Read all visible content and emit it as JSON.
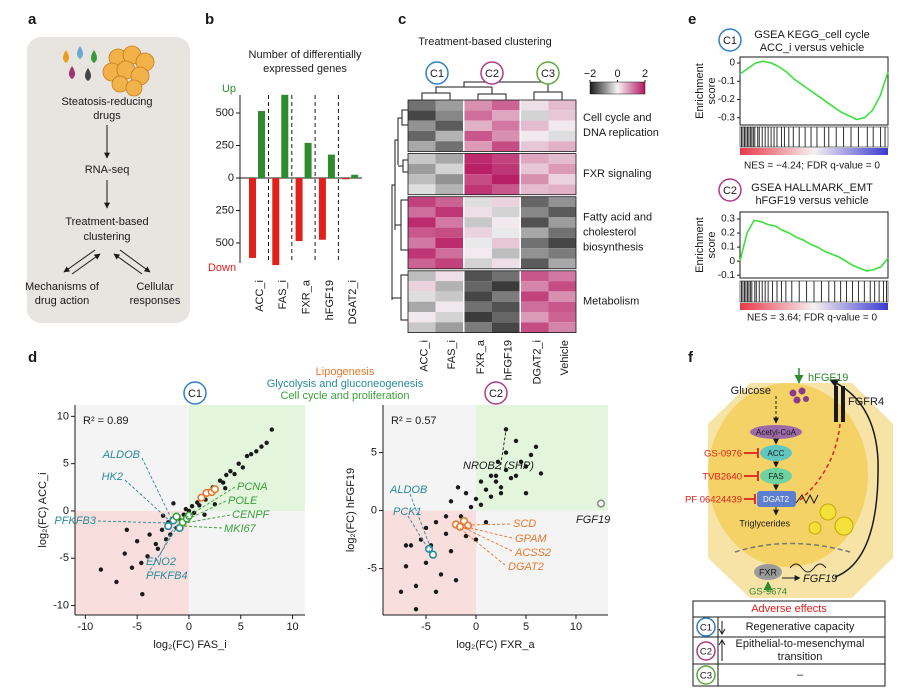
{
  "panel_labels": [
    "a",
    "b",
    "c",
    "d",
    "e",
    "f"
  ],
  "clusters": [
    {
      "label": "C1",
      "color": "#2f7fc1"
    },
    {
      "label": "C2",
      "color": "#b03a8a"
    },
    {
      "label": "C3",
      "color": "#5aaa3a"
    }
  ],
  "workflow": {
    "drugs": [
      "Steatosis-reducing",
      "drugs"
    ],
    "sequencing": "RNA-seq",
    "clustering": [
      "Treatment-based",
      "clustering"
    ],
    "mechanisms": [
      "Mechanisms of",
      "drug action"
    ],
    "responses": [
      "Cellular",
      "responses"
    ]
  },
  "pathway_legend": [
    {
      "name": "Lipogenesis",
      "color": "#e8772e"
    },
    {
      "name": "Glycolysis and gluconeogenesis",
      "color": "#2a8a9a"
    },
    {
      "name": "Cell cycle and proliferation",
      "color": "#3aa03a"
    }
  ],
  "chart_data": [
    {
      "type": "bar",
      "title": [
        "Number of differentially",
        "expressed genes"
      ],
      "categories": [
        "ACC_i",
        "FAS_i",
        "FXR_a",
        "hFGF19",
        "DGAT2_i"
      ],
      "series": [
        {
          "name": "Up",
          "color": "#2e8b2e",
          "values": [
            515,
            640,
            270,
            180,
            25
          ]
        },
        {
          "name": "Down",
          "color": "#e0201b",
          "values": [
            -615,
            -670,
            -485,
            -475,
            -10
          ]
        }
      ],
      "ylim": [
        -700,
        700
      ],
      "yticks": [
        500,
        250,
        0,
        {
          "value": -250,
          "label": "250"
        },
        {
          "value": -500,
          "label": "500"
        }
      ]
    },
    {
      "type": "heatmap",
      "title": "Treatment-based clustering",
      "categories": [
        "ACC_i",
        "FAS_i",
        "FXR_a",
        "hFGF19",
        "DGAT2_i",
        "Vehicle"
      ],
      "zlim": [
        -2,
        2
      ],
      "zticks": [
        {
          "value": -2,
          "label": "−2"
        },
        0,
        2
      ],
      "row_groups": [
        {
          "label": [
            "Cell cycle and",
            "DNA replication"
          ],
          "rows": [
            [
              -1.2,
              -0.8,
              0.9,
              1.3,
              0.2,
              0.5
            ],
            [
              -1.6,
              -1.0,
              1.2,
              0.7,
              -0.3,
              0.4
            ],
            [
              -0.9,
              -1.4,
              0.6,
              1.1,
              0.5,
              0.1
            ],
            [
              -1.3,
              -0.6,
              1.4,
              0.9,
              0.1,
              -0.2
            ],
            [
              -0.7,
              -1.2,
              0.8,
              1.5,
              0.4,
              0.6
            ]
          ]
        },
        {
          "label": [
            "FXR signaling"
          ],
          "rows": [
            [
              -0.4,
              -0.7,
              1.8,
              1.6,
              0.7,
              0.5
            ],
            [
              -0.8,
              -0.3,
              1.9,
              1.7,
              0.4,
              0.8
            ],
            [
              -0.5,
              -0.9,
              1.5,
              1.9,
              0.9,
              0.3
            ],
            [
              -0.2,
              -0.6,
              1.7,
              1.4,
              0.5,
              0.6
            ]
          ]
        },
        {
          "label": [
            "Fatty acid and",
            "cholesterol",
            "biosynthesis"
          ],
          "rows": [
            [
              1.6,
              1.3,
              -0.2,
              0.3,
              -1.3,
              -0.9
            ],
            [
              1.2,
              1.7,
              0.2,
              -0.3,
              -1.0,
              -1.4
            ],
            [
              1.8,
              1.1,
              -0.4,
              0.1,
              -1.5,
              -0.8
            ],
            [
              1.4,
              1.5,
              0.3,
              -0.1,
              -0.7,
              -1.2
            ],
            [
              1.1,
              1.8,
              -0.1,
              0.4,
              -1.2,
              -1.6
            ],
            [
              1.7,
              1.2,
              0.1,
              -0.5,
              -0.9,
              -1.1
            ],
            [
              1.3,
              1.6,
              -0.3,
              0.2,
              -1.4,
              -0.7
            ]
          ]
        },
        {
          "label": [
            "Metabolism"
          ],
          "rows": [
            [
              -0.5,
              0.2,
              -1.5,
              -1.2,
              1.4,
              1.1
            ],
            [
              0.3,
              -0.6,
              -1.3,
              -1.7,
              1.0,
              1.5
            ],
            [
              -0.2,
              -0.4,
              -1.6,
              -1.1,
              1.6,
              0.9
            ],
            [
              -0.7,
              0.1,
              -1.2,
              -1.5,
              1.2,
              1.4
            ],
            [
              0.1,
              -0.3,
              -1.7,
              -1.3,
              0.8,
              1.3
            ],
            [
              -0.4,
              -0.8,
              -1.1,
              -1.6,
              1.5,
              1.0
            ]
          ]
        }
      ]
    },
    {
      "type": "scatter",
      "annotation": "R² = 0.89",
      "xlabel": "log₂(FC) FAS_i",
      "ylabel": "log₂(FC) ACC_i",
      "xlim": [
        -11,
        11.2
      ],
      "ylim": [
        -11,
        11.2
      ],
      "xticks": [
        -10,
        -5,
        0,
        5,
        10
      ],
      "yticks": [
        10,
        5,
        0,
        -5,
        -10
      ],
      "series": [
        {
          "color": "#1a1a1a",
          "x": [
            -8.5,
            -7,
            -6.2,
            -5.5,
            -5,
            -4.6,
            -4,
            -3.8,
            -3.2,
            -3,
            -2.6,
            -2.2,
            -2,
            -1.8,
            -1.5,
            -1.2,
            -1,
            -0.8,
            -0.5,
            -0.3,
            0,
            0.3,
            0.5,
            0.8,
            1,
            1.3,
            1.6,
            2,
            2.3,
            2.6,
            3,
            3.3,
            3.6,
            4,
            4.4,
            4.8,
            5.2,
            5.6,
            6,
            6.5,
            7,
            7.5,
            8,
            -2.5,
            -1.5,
            1.5,
            2.5,
            -4.5,
            3.5,
            -6
          ],
          "values": [
            -6.2,
            -7.5,
            -4.5,
            -6,
            -3.2,
            -5.5,
            -4.8,
            -2.5,
            -3.5,
            -4,
            -2,
            -3,
            -1.2,
            -2.5,
            -1,
            -1.8,
            -0.6,
            -1,
            -0.4,
            0.2,
            0,
            0.5,
            -0.2,
            0.9,
            0.6,
            1.5,
            1.2,
            2.1,
            2.5,
            2.2,
            3.2,
            3,
            3.8,
            4.2,
            3.9,
            5,
            4.6,
            5.8,
            6,
            6.3,
            6.8,
            7.2,
            8.6,
            -0.5,
            0.8,
            -0.4,
            0.7,
            -8.8,
            2.4,
            -2
          ]
        },
        {
          "color": "#e8772e",
          "x": [
            1.2,
            1.7,
            2.2,
            2.5
          ],
          "values": [
            1.4,
            1.9,
            2.0,
            2.3
          ]
        },
        {
          "color": "#2a8a9a",
          "x": [
            -2.0,
            -1.5,
            -0.9
          ],
          "values": [
            -1.6,
            -1.0,
            -1.8
          ]
        },
        {
          "color": "#3aa03a",
          "x": [
            -1.2,
            -0.6,
            -0.2,
            0.0
          ],
          "values": [
            -0.6,
            -1.2,
            -0.8,
            -0.5
          ]
        }
      ],
      "gene_labels": [
        {
          "text": "ALDOB",
          "color": "#2a8a9a"
        },
        {
          "text": "HK2",
          "color": "#2a8a9a"
        },
        {
          "text": "PFKFB3",
          "color": "#2a8a9a"
        },
        {
          "text": "ENO2",
          "color": "#2a8a9a"
        },
        {
          "text": "PFKFB4",
          "color": "#2a8a9a"
        },
        {
          "text": "PCNA",
          "color": "#3aa03a"
        },
        {
          "text": "POLE",
          "color": "#3aa03a"
        },
        {
          "text": "CENPF",
          "color": "#3aa03a"
        },
        {
          "text": "MKI67",
          "color": "#3aa03a"
        }
      ]
    },
    {
      "type": "scatter",
      "annotation": "R² = 0.57",
      "xlabel": "log₂(FC) FXR_a",
      "ylabel": "log₂(FC) hFGF19",
      "xlim": [
        -9.3,
        13.2
      ],
      "ylim": [
        -9,
        9.1
      ],
      "xticks": [
        -5,
        0,
        5,
        10
      ],
      "yticks": [
        5,
        0,
        -5
      ],
      "series": [
        {
          "color": "#1a1a1a",
          "x": [
            -7.5,
            -7,
            -6.5,
            -6,
            -5.5,
            -5,
            -4.5,
            -4,
            -3.5,
            -3,
            -2.5,
            -2,
            -1.5,
            -1,
            -0.5,
            0,
            0.5,
            1,
            1.5,
            2,
            2.5,
            3,
            3.5,
            4,
            4.5,
            5,
            5.5,
            6,
            -6,
            -4,
            -2,
            -1,
            1,
            2,
            3,
            4,
            -3,
            0.5,
            1.5,
            2.5,
            3,
            2.2,
            -5,
            -2.5,
            -1.8,
            5,
            6.5,
            0,
            -7
          ],
          "values": [
            -7,
            -4.8,
            -3,
            -6.5,
            -2.5,
            -4.5,
            -3,
            -1,
            -5.5,
            -2,
            -3.5,
            -1.2,
            -0.5,
            -2.2,
            0.3,
            1,
            0.5,
            1.8,
            1.2,
            2.5,
            2,
            3.5,
            2.8,
            3,
            4.2,
            3.8,
            4.8,
            5.5,
            -8.5,
            -7,
            -6,
            1.5,
            -1,
            3,
            7,
            6,
            -0.5,
            2.5,
            3,
            1.5,
            5,
            4.2,
            -1.5,
            0.8,
            2,
            1.5,
            3.2,
            -2.5,
            -3
          ]
        },
        {
          "color": "#e8772e",
          "x": [
            -2.0,
            -1.6,
            -1.2,
            -0.8
          ],
          "values": [
            -1.2,
            -1.4,
            -0.9,
            -1.3
          ]
        },
        {
          "color": "#2a8a9a",
          "x": [
            -4.7,
            -4.3
          ],
          "values": [
            -3.3,
            -3.8
          ]
        },
        {
          "color": "#8a8a8a",
          "x": [
            12.5
          ],
          "values": [
            0.6
          ]
        }
      ],
      "gene_labels": [
        {
          "text": "NROB2 (SHP)",
          "color": "#1a1a1a"
        },
        {
          "text": "ALDOB",
          "color": "#2a8a9a"
        },
        {
          "text": "PCK1",
          "color": "#2a8a9a"
        },
        {
          "text": "SCD",
          "color": "#e8772e"
        },
        {
          "text": "GPAM",
          "color": "#e8772e"
        },
        {
          "text": "ACSS2",
          "color": "#e8772e"
        },
        {
          "text": "DGAT2",
          "color": "#e8772e"
        },
        {
          "text": "FGF19",
          "color": "#1a1a1a"
        }
      ]
    },
    {
      "type": "line",
      "title": [
        "GSEA KEGG_cell cycle",
        "ACC_i versus vehicle"
      ],
      "ylabel": [
        "Enrichment",
        "score"
      ],
      "color": "#3ce03c",
      "values": [
        -0.06,
        -0.03,
        0,
        0.01,
        0.0,
        -0.02,
        -0.05,
        -0.09,
        -0.12,
        -0.15,
        -0.18,
        -0.21,
        -0.24,
        -0.27,
        -0.29,
        -0.31,
        -0.3,
        -0.26,
        -0.18,
        -0.05
      ],
      "ylim": [
        -0.34,
        0.033
      ],
      "yticks": [
        0,
        -0.1,
        -0.2,
        -0.3
      ],
      "hits": [
        0.01,
        0.02,
        0.03,
        0.04,
        0.05,
        0.06,
        0.07,
        0.08,
        0.09,
        0.1,
        0.12,
        0.13,
        0.15,
        0.17,
        0.19,
        0.21,
        0.23,
        0.25,
        0.28,
        0.3,
        0.33,
        0.36,
        0.4,
        0.44,
        0.48,
        0.52,
        0.57,
        0.6,
        0.65,
        0.7,
        0.75,
        0.8,
        0.86,
        0.9,
        0.95,
        0.98
      ],
      "annotation": "NES = −4.24; FDR q-value = 0"
    },
    {
      "type": "line",
      "title": [
        "GSEA HALLMARK_EMT",
        "hFGF19 versus vehicle"
      ],
      "ylabel": [
        "Enrichment",
        "score"
      ],
      "color": "#3ce03c",
      "values": [
        0,
        0.2,
        0.29,
        0.28,
        0.26,
        0.25,
        0.22,
        0.2,
        0.17,
        0.15,
        0.12,
        0.1,
        0.07,
        0.05,
        0.03,
        0.0,
        -0.03,
        -0.05,
        -0.07,
        -0.06,
        -0.04,
        0.02
      ],
      "ylim": [
        -0.12,
        0.35
      ],
      "yticks": [
        0.3,
        0.2,
        0.1,
        0,
        -0.1
      ],
      "hits": [
        0.01,
        0.02,
        0.03,
        0.04,
        0.05,
        0.06,
        0.07,
        0.08,
        0.1,
        0.11,
        0.13,
        0.15,
        0.17,
        0.19,
        0.22,
        0.25,
        0.28,
        0.31,
        0.35,
        0.4,
        0.45,
        0.5,
        0.55,
        0.6,
        0.64,
        0.68,
        0.72,
        0.76,
        0.8,
        0.84,
        0.88,
        0.91,
        0.94,
        0.97,
        0.99
      ],
      "annotation": "NES = 3.64; FDR q-value = 0"
    }
  ],
  "mechanism": {
    "ligand": "hFGF19",
    "receptor": "FGFR4",
    "substrate": "Glucose",
    "metabolites": [
      "Acetyl-CoA",
      "Triglycerides"
    ],
    "enzymes": [
      "ACC",
      "FAS",
      "DGAT2"
    ],
    "inhibitors": [
      "GS-0976",
      "TVB2640",
      "PF 06424439"
    ],
    "nuclear_receptor": "FXR",
    "target_gene": "FGF19",
    "agonist": "GS-9674"
  },
  "adverse_effects": {
    "header": "Adverse effects",
    "rows": [
      [
        "Regenerative capacity"
      ],
      [
        "Epithelial-to-mesenchymal",
        "transition"
      ],
      [
        "–"
      ]
    ]
  }
}
